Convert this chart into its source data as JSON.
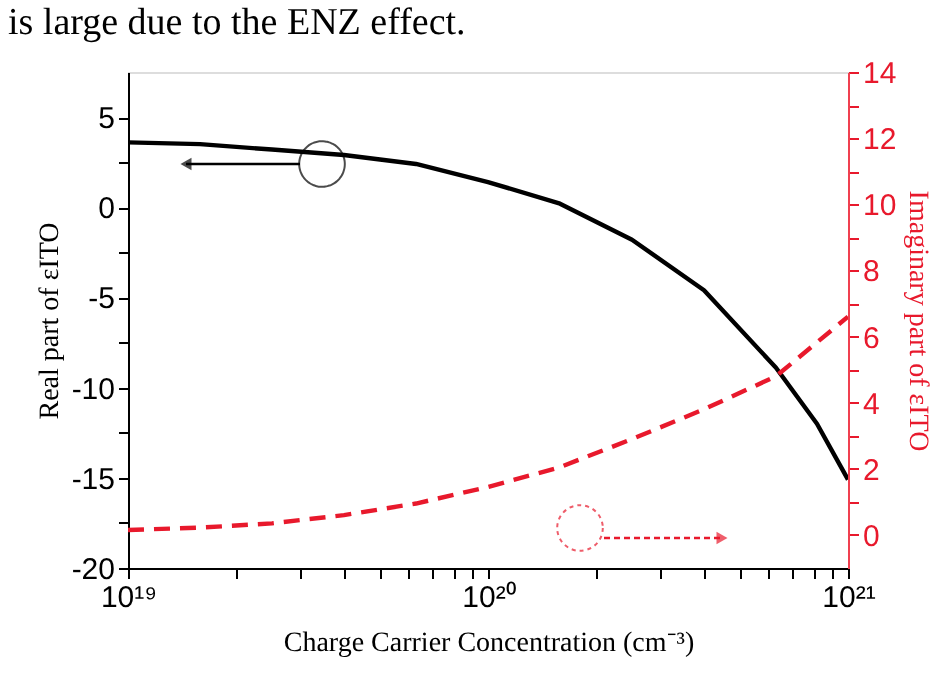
{
  "chart_data": {
    "type": "line",
    "xlabel": "Charge Carrier Concentration (cm⁻³)",
    "ylabel": "Real part of εITO",
    "y2label": "Imaginary part of εITO",
    "annotations": [
      "is large due to the ENZ effect."
    ],
    "log": "x",
    "grid": false,
    "legend": false,
    "marker": "none",
    "xlim": [
      1e+19,
      1e+21
    ],
    "xticks": [
      {
        "value": 1e+19,
        "label": "10¹⁹"
      },
      {
        "value": 2e+19,
        "label": null
      },
      {
        "value": 3e+19,
        "label": null
      },
      {
        "value": 4e+19,
        "label": null
      },
      {
        "value": 5e+19,
        "label": null
      },
      {
        "value": 6e+19,
        "label": null
      },
      {
        "value": 7e+19,
        "label": null
      },
      {
        "value": 8e+19,
        "label": null
      },
      {
        "value": 9e+19,
        "label": null
      },
      {
        "value": 1e+20,
        "label": "10²⁰"
      },
      {
        "value": 2e+20,
        "label": null
      },
      {
        "value": 3e+20,
        "label": null
      },
      {
        "value": 4e+20,
        "label": null
      },
      {
        "value": 5e+20,
        "label": null
      },
      {
        "value": 6e+20,
        "label": null
      },
      {
        "value": 7e+20,
        "label": null
      },
      {
        "value": 8e+20,
        "label": null
      },
      {
        "value": 9e+20,
        "label": null
      },
      {
        "value": 1e+21,
        "label": "10²¹"
      }
    ],
    "ylim": [
      -20,
      7.5
    ],
    "yticks": [
      -20,
      {
        "value": -17.5,
        "label": null
      },
      -15,
      {
        "value": -12.5,
        "label": null
      },
      -10,
      {
        "value": -7.5,
        "label": null
      },
      -5,
      {
        "value": -2.5,
        "label": null
      },
      0,
      {
        "value": 2.5,
        "label": null
      },
      5
    ],
    "y2lim": [
      -1,
      14
    ],
    "y2ticks": [
      0,
      {
        "value": 1,
        "label": null
      },
      2,
      {
        "value": 3,
        "label": null
      },
      4,
      {
        "value": 5,
        "label": null
      },
      6,
      {
        "value": 7,
        "label": null
      },
      8,
      {
        "value": 9,
        "label": null
      },
      10,
      {
        "value": 11,
        "label": null
      },
      12,
      {
        "value": 13,
        "label": null
      },
      14
    ],
    "series": [
      {
        "color": "#000000",
        "line_style": "solid",
        "x": [
          1e+19,
          1.585e+19,
          2.512e+19,
          3.981e+19,
          6.31e+19,
          1e+20,
          1.585e+20,
          2.512e+20,
          3.981e+20,
          6.31e+20,
          8.2e+20,
          1e+21
        ],
        "values": [
          3.6,
          3.5,
          3.2,
          2.9,
          2.4,
          1.4,
          0.2,
          -1.8,
          -4.6,
          -8.9,
          -12.0,
          -15.1
        ]
      },
      {
        "color": "#e8192c",
        "line_style": "dashed",
        "axis": "y2",
        "x": [
          1e+19,
          1.585e+19,
          2.512e+19,
          3.981e+19,
          6.31e+19,
          1e+20,
          1.585e+20,
          2.512e+20,
          3.981e+20,
          6.31e+20,
          1e+21
        ],
        "values": [
          0.15,
          0.22,
          0.35,
          0.6,
          0.95,
          1.45,
          2.05,
          2.9,
          3.8,
          4.8,
          6.6
        ]
      }
    ]
  }
}
